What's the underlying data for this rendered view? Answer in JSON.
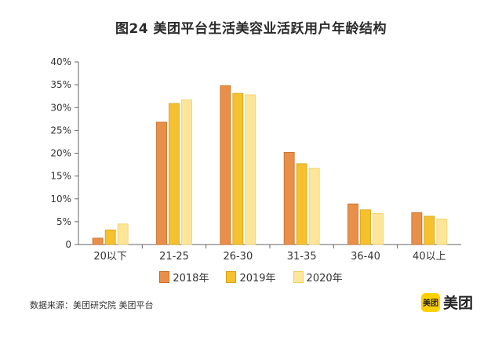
{
  "chart_data": {
    "type": "bar",
    "title": "图24  美团平台生活美容业活跃用户年龄结构",
    "categories": [
      "20以下",
      "21-25",
      "26-30",
      "31-35",
      "36-40",
      "40以上"
    ],
    "series": [
      {
        "name": "2018年",
        "color": "#e8904a",
        "values": [
          1.4,
          26.8,
          34.8,
          20.2,
          8.9,
          7.0
        ]
      },
      {
        "name": "2019年",
        "color": "#f5c12e",
        "values": [
          3.2,
          30.9,
          33.1,
          17.7,
          7.6,
          6.2
        ]
      },
      {
        "name": "2020年",
        "color": "#fde69a",
        "values": [
          4.5,
          31.7,
          32.8,
          16.7,
          6.8,
          5.6
        ]
      }
    ],
    "y_ticks": [
      "0",
      "5%",
      "10%",
      "15%",
      "20%",
      "25%",
      "30%",
      "35%",
      "40%"
    ],
    "ylim": [
      0,
      40
    ],
    "grid": false,
    "legend_position": "bottom"
  },
  "source": "数据来源：美团研究院  美团平台",
  "brand": {
    "badge": "美团",
    "name": "美团",
    "badge_color": "#ffd100"
  }
}
